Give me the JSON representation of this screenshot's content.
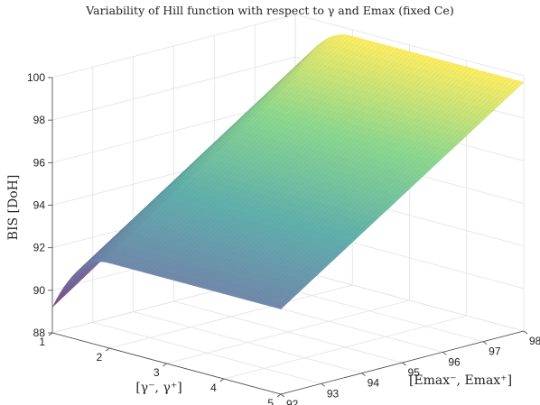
{
  "chart_data": {
    "type": "surface",
    "title": "Variability of Hill function with respect to γ and Emax (fixed Ce)",
    "xlabel": "[γ⁻, γ⁺]",
    "ylabel": "[Emax⁻, Emax⁺]",
    "zlabel": "BIS [DoH]",
    "x_ticks": [
      "1",
      "2",
      "3",
      "4",
      "5"
    ],
    "y_ticks": [
      "92",
      "93",
      "94",
      "95",
      "96",
      "97",
      "98"
    ],
    "z_ticks": [
      "88",
      "90",
      "92",
      "94",
      "96",
      "98",
      "100"
    ],
    "xlim": [
      1,
      5
    ],
    "ylim": [
      92,
      98
    ],
    "zlim": [
      88,
      100
    ],
    "grid": true,
    "colormap": [
      "#440154",
      "#3b528b",
      "#21918c",
      "#5ec962",
      "#fde725"
    ],
    "surface_corners": {
      "gamma_1_emax_92": 89.2,
      "gamma_1_emax_98": 97.1,
      "gamma_5_emax_92": 92.0,
      "gamma_5_emax_98": 99.7
    },
    "surface_profile": {
      "gamma": [
        1.0,
        1.5,
        2.0,
        2.5,
        3.0,
        3.5,
        4.0,
        4.5,
        5.0
      ],
      "bis_at_emax_92": [
        89.2,
        91.3,
        92.0,
        92.0,
        92.0,
        92.0,
        92.0,
        92.0,
        92.0
      ],
      "bis_at_emax_98": [
        97.1,
        99.6,
        99.7,
        99.7,
        99.7,
        99.7,
        99.7,
        99.7,
        99.7
      ]
    }
  }
}
